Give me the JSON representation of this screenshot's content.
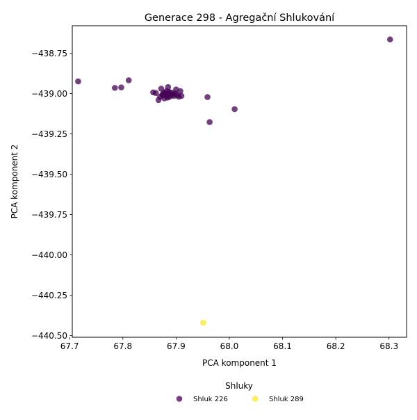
{
  "chart_data": {
    "type": "scatter",
    "title": "Generace 298 - Agregační Shlukování",
    "xlabel": "PCA komponent 1",
    "ylabel": "PCA komponent 2",
    "xlim": [
      67.705,
      68.333
    ],
    "ylim": [
      -440.51,
      -438.58
    ],
    "xticks": [
      67.7,
      67.8,
      67.9,
      68.0,
      68.1,
      68.2,
      68.3
    ],
    "xtick_labels": [
      "67.7",
      "67.8",
      "67.9",
      "68.0",
      "68.1",
      "68.2",
      "68.3"
    ],
    "yticks": [
      -438.75,
      -439.0,
      -439.25,
      -439.5,
      -439.75,
      -440.0,
      -440.25,
      -440.5
    ],
    "ytick_labels": [
      "−438.75",
      "−439.00",
      "−439.25",
      "−439.50",
      "−439.75",
      "−440.00",
      "−440.25",
      "−440.50"
    ],
    "grid": false,
    "legend": {
      "title": "Shluky",
      "placement": "bottom-center",
      "columns": 2
    },
    "series": [
      {
        "name": "Shluk 226",
        "color": "#440154",
        "points": [
          [
            67.716,
            -438.925
          ],
          [
            67.785,
            -438.965
          ],
          [
            67.797,
            -438.962
          ],
          [
            67.811,
            -438.918
          ],
          [
            68.302,
            -438.665
          ],
          [
            67.959,
            -439.022
          ],
          [
            68.01,
            -439.097
          ],
          [
            67.963,
            -439.177
          ],
          [
            67.857,
            -438.993
          ],
          [
            67.862,
            -438.997
          ],
          [
            67.867,
            -439.04
          ],
          [
            67.87,
            -439.02
          ],
          [
            67.872,
            -438.97
          ],
          [
            67.875,
            -439.01
          ],
          [
            67.877,
            -438.995
          ],
          [
            67.878,
            -439.03
          ],
          [
            67.88,
            -439.005
          ],
          [
            67.882,
            -438.985
          ],
          [
            67.883,
            -439.015
          ],
          [
            67.885,
            -438.96
          ],
          [
            67.886,
            -439.0
          ],
          [
            67.887,
            -438.99
          ],
          [
            67.888,
            -439.02
          ],
          [
            67.89,
            -439.01
          ],
          [
            67.892,
            -438.995
          ],
          [
            67.894,
            -439.005
          ],
          [
            67.896,
            -439.015
          ],
          [
            67.898,
            -439.0
          ],
          [
            67.9,
            -438.975
          ],
          [
            67.902,
            -439.01
          ],
          [
            67.905,
            -439.02
          ],
          [
            67.908,
            -438.985
          ],
          [
            67.91,
            -439.015
          ],
          [
            67.884,
            -439.025
          ],
          [
            67.879,
            -438.998
          ],
          [
            67.874,
            -439.008
          ]
        ]
      },
      {
        "name": "Shluk 289",
        "color": "#fde725",
        "points": [
          [
            67.951,
            -440.42
          ]
        ]
      }
    ]
  }
}
